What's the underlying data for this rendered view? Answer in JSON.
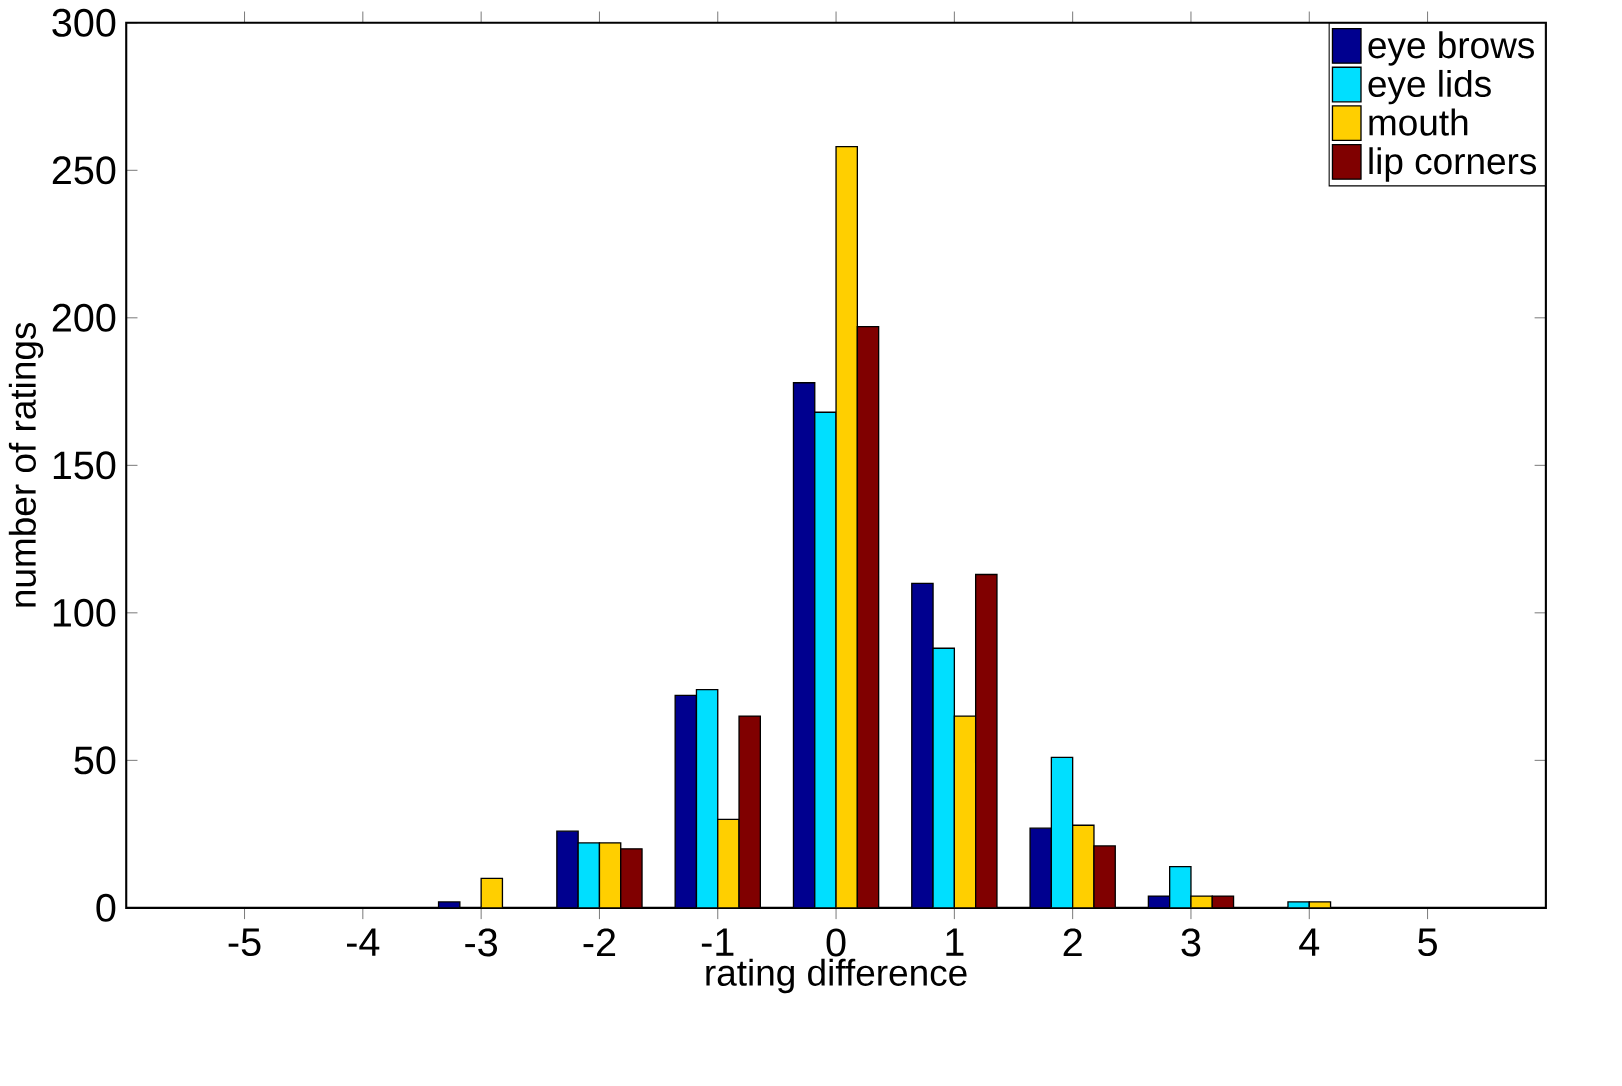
{
  "chart_data": {
    "type": "bar",
    "xlabel": "rating difference",
    "ylabel": "number of ratings",
    "x": [
      -5,
      -4,
      -3,
      -2,
      -1,
      0,
      1,
      2,
      3,
      4,
      5
    ],
    "series": [
      {
        "name": "eye brows",
        "color": "#00008f",
        "values": [
          0,
          0,
          2,
          26,
          72,
          178,
          110,
          27,
          4,
          0,
          0
        ]
      },
      {
        "name": "eye lids",
        "color": "#00dfff",
        "values": [
          0,
          0,
          0,
          22,
          74,
          168,
          88,
          51,
          14,
          2,
          0
        ]
      },
      {
        "name": "mouth",
        "color": "#ffcf00",
        "values": [
          0,
          0,
          10,
          22,
          30,
          258,
          65,
          28,
          4,
          2,
          0
        ]
      },
      {
        "name": "lip corners",
        "color": "#800000",
        "values": [
          0,
          0,
          0,
          20,
          65,
          197,
          113,
          21,
          4,
          0,
          0
        ]
      }
    ],
    "xlim": [
      -6,
      6
    ],
    "ylim": [
      0,
      300
    ],
    "xticks": [
      -5,
      -4,
      -3,
      -2,
      -1,
      0,
      1,
      2,
      3,
      4,
      5
    ],
    "yticks": [
      0,
      50,
      100,
      150,
      200,
      250,
      300
    ],
    "legend": "top right",
    "grid": false
  }
}
